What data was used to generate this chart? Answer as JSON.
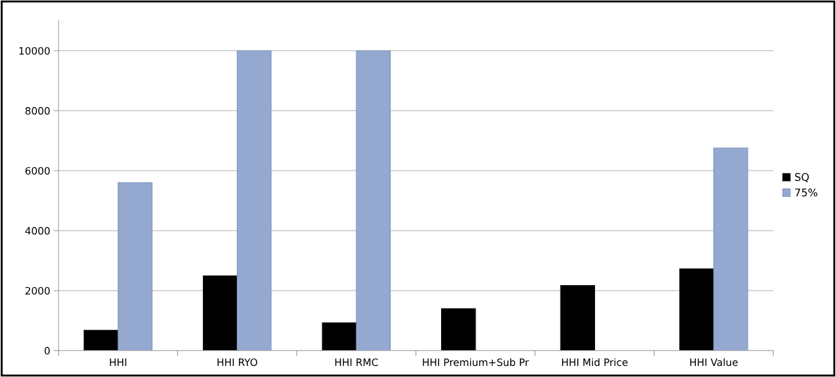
{
  "chart_data": {
    "type": "bar",
    "categories": [
      "HHI",
      "HHI RYO",
      "HHI RMC",
      "HHI Premium+Sub Pr",
      "HHI Mid Price",
      "HHI Value"
    ],
    "series": [
      {
        "name": "SQ",
        "color": "#000000",
        "values": [
          680,
          2490,
          925,
          1400,
          2170,
          2730
        ]
      },
      {
        "name": "75%",
        "color": "#95a9d0",
        "values": [
          5600,
          10000,
          10000,
          null,
          null,
          6760
        ]
      }
    ],
    "ylim": [
      0,
      11000
    ],
    "yticks": [
      0,
      2000,
      4000,
      6000,
      8000,
      10000
    ],
    "grid": "y",
    "legend": "right"
  }
}
